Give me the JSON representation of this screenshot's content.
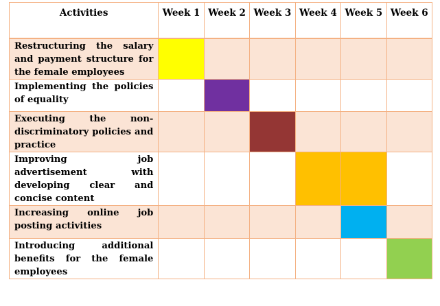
{
  "table": {
    "headers": [
      "Activities",
      "Week 1",
      "Week 2",
      "Week 3",
      "Week 4",
      "Week 5",
      "Week 6"
    ],
    "rows": [
      {
        "activity": "Restructuring the salary and payment structure for the female employees",
        "weeks": [
          1
        ],
        "color": "#ffff00",
        "shaded": true
      },
      {
        "activity": "Implementing the policies of equality",
        "weeks": [
          2
        ],
        "color": "#7030a0",
        "shaded": false
      },
      {
        "activity": "Executing the non-discriminatory policies and practice",
        "weeks": [
          3
        ],
        "color": "#943634",
        "shaded": true
      },
      {
        "activity": "Improving job advertisement with developing clear and concise content",
        "weeks": [
          4,
          5
        ],
        "color": "#ffc000",
        "shaded": false
      },
      {
        "activity": "Increasing online job posting activities",
        "weeks": [
          5
        ],
        "color": "#00b0f0",
        "shaded": true
      },
      {
        "activity": "Introducing additional benefits for the female employees",
        "weeks": [
          6
        ],
        "color": "#92d050",
        "shaded": false
      }
    ]
  },
  "colors": {
    "border": "#f4b183",
    "shaded_row": "#fbe4d5"
  }
}
